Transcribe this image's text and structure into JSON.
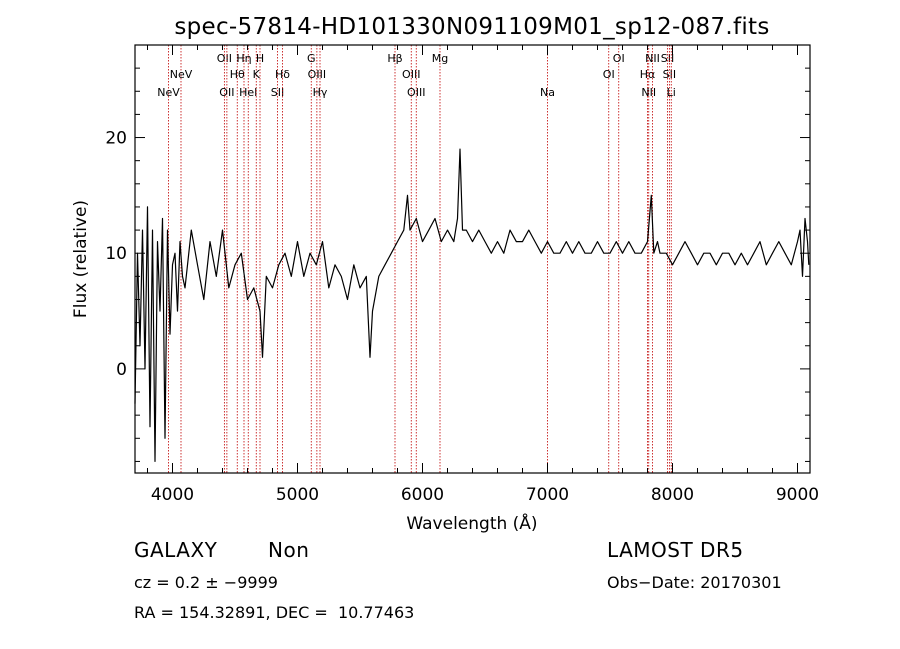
{
  "chart_data": {
    "type": "line",
    "title": "spec-57814-HD101330N091109M01_sp12-087.fits",
    "xlabel": "Wavelength (Å)",
    "ylabel": "Flux (relative)",
    "xlim": [
      3700,
      9100
    ],
    "ylim": [
      -9,
      28
    ],
    "x_ticks": [
      4000,
      5000,
      6000,
      7000,
      8000,
      9000
    ],
    "y_ticks": [
      0,
      10,
      20
    ],
    "grid": false,
    "line_color": "#000000",
    "marker_color": "#c00000",
    "series": [
      {
        "x": [
          3700,
          3720,
          3740,
          3760,
          3780,
          3800,
          3820,
          3840,
          3860,
          3880,
          3900,
          3920,
          3940,
          3960,
          3980,
          4000,
          4020,
          4040,
          4060,
          4080,
          4100,
          4150,
          4200,
          4250,
          4300,
          4350,
          4400,
          4450,
          4500,
          4550,
          4600,
          4650,
          4700,
          4720,
          4750,
          4800,
          4850,
          4900,
          4950,
          5000,
          5050,
          5100,
          5150,
          5200,
          5250,
          5300,
          5350,
          5400,
          5450,
          5500,
          5550,
          5580,
          5600,
          5650,
          5700,
          5750,
          5800,
          5850,
          5880,
          5900,
          5950,
          6000,
          6050,
          6100,
          6150,
          6200,
          6250,
          6280,
          6300,
          6320,
          6350,
          6400,
          6450,
          6500,
          6550,
          6600,
          6650,
          6700,
          6750,
          6800,
          6850,
          6900,
          6950,
          7000,
          7050,
          7100,
          7150,
          7200,
          7250,
          7300,
          7350,
          7400,
          7450,
          7500,
          7550,
          7600,
          7650,
          7700,
          7750,
          7800,
          7830,
          7850,
          7880,
          7900,
          7950,
          8000,
          8050,
          8100,
          8150,
          8200,
          8250,
          8300,
          8350,
          8400,
          8450,
          8500,
          8550,
          8600,
          8650,
          8700,
          8750,
          8800,
          8850,
          8900,
          8950,
          9000,
          9020,
          9040,
          9060,
          9080,
          9090
        ],
        "y": [
          -3,
          10,
          2,
          12,
          0,
          14,
          -5,
          12,
          -8,
          11,
          5,
          13,
          -6,
          12,
          3,
          9,
          10,
          5,
          11,
          8,
          7,
          12,
          9,
          6,
          11,
          8,
          12,
          7,
          9,
          10,
          6,
          7,
          5,
          1,
          8,
          7,
          9,
          10,
          8,
          11,
          8,
          10,
          9,
          11,
          7,
          9,
          8,
          6,
          9,
          7,
          8,
          1,
          5,
          8,
          9,
          10,
          11,
          12,
          15,
          12,
          13,
          11,
          12,
          13,
          11,
          12,
          11,
          13,
          19,
          12,
          12,
          11,
          12,
          11,
          10,
          11,
          10,
          12,
          11,
          11,
          12,
          11,
          10,
          11,
          10,
          10,
          11,
          10,
          11,
          10,
          10,
          11,
          10,
          10,
          11,
          10,
          11,
          10,
          10,
          11,
          15,
          10,
          11,
          10,
          10,
          9,
          10,
          11,
          10,
          9,
          10,
          10,
          9,
          10,
          10,
          9,
          10,
          9,
          10,
          11,
          9,
          10,
          11,
          10,
          9,
          11,
          12,
          8,
          13,
          11,
          9
        ]
      }
    ],
    "lines": [
      {
        "wave": 3968,
        "label": "NeV",
        "tier": 3
      },
      {
        "wave": 4068,
        "label": "NeV",
        "tier": 2
      },
      {
        "wave": 4415,
        "label": "OII",
        "tier": 1
      },
      {
        "wave": 4435,
        "label": "OII",
        "tier": 3
      },
      {
        "wave": 4518,
        "label": "Hθ",
        "tier": 2
      },
      {
        "wave": 4572,
        "label": "Hη",
        "tier": 1
      },
      {
        "wave": 4606,
        "label": "HeI",
        "tier": 3
      },
      {
        "wave": 4670,
        "label": "K",
        "tier": 2
      },
      {
        "wave": 4700,
        "label": "H",
        "tier": 1
      },
      {
        "wave": 4840,
        "label": "SII",
        "tier": 3
      },
      {
        "wave": 4880,
        "label": "Hδ",
        "tier": 2
      },
      {
        "wave": 5110,
        "label": "G",
        "tier": 1
      },
      {
        "wave": 5155,
        "label": "OIII",
        "tier": 2
      },
      {
        "wave": 5180,
        "label": "Hγ",
        "tier": 3
      },
      {
        "wave": 5780,
        "label": "Hβ",
        "tier": 1
      },
      {
        "wave": 5910,
        "label": "OIII",
        "tier": 2
      },
      {
        "wave": 5950,
        "label": "OIII",
        "tier": 3
      },
      {
        "wave": 6140,
        "label": "Mg",
        "tier": 1
      },
      {
        "wave": 7000,
        "label": "Na",
        "tier": 3
      },
      {
        "wave": 7490,
        "label": "OI",
        "tier": 2
      },
      {
        "wave": 7570,
        "label": "OI",
        "tier": 1
      },
      {
        "wave": 7800,
        "label": "Hα",
        "tier": 2
      },
      {
        "wave": 7810,
        "label": "NII",
        "tier": 3
      },
      {
        "wave": 7840,
        "label": "NII",
        "tier": 1
      },
      {
        "wave": 7960,
        "label": "SII",
        "tier": 1
      },
      {
        "wave": 7975,
        "label": "SII",
        "tier": 2
      },
      {
        "wave": 7990,
        "label": "Li",
        "tier": 3
      }
    ]
  },
  "info": {
    "class": "GALAXY",
    "subclass": "Non",
    "survey": "LAMOST DR5",
    "cz": "cz = 0.2 ± −9999",
    "obs_date": "Obs−Date: 20170301",
    "radec": "RA = 154.32891, DEC =  10.77463"
  }
}
